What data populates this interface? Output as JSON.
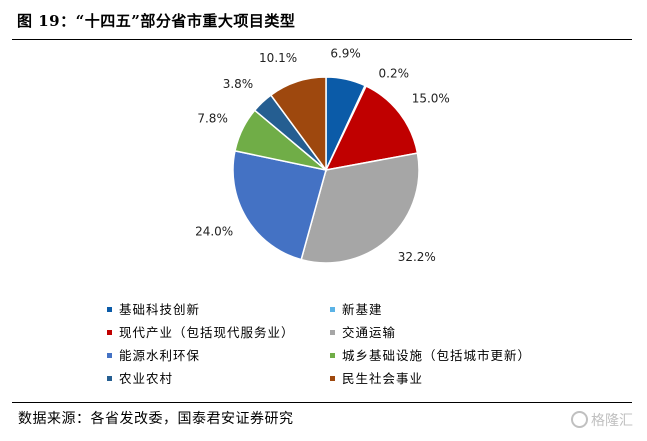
{
  "title": "图 19：“十四五”部分省市重大项目类型",
  "source": "数据来源：各省发改委，国泰君安证券研究",
  "watermark": "格隆汇",
  "chart_data": {
    "type": "pie",
    "title": "",
    "legend_position": "bottom",
    "series": [
      {
        "name": "基础科技创新",
        "value": 6.9,
        "label": "6.9%",
        "color": "#0b5ba8"
      },
      {
        "name": "新基建",
        "value": 0.2,
        "label": "0.2%",
        "color": "#5bb3e6"
      },
      {
        "name": "现代产业（包括现代服务业）",
        "value": 15.0,
        "label": "15.0%",
        "color": "#c00000"
      },
      {
        "name": "交通运输",
        "value": 32.2,
        "label": "32.2%",
        "color": "#a6a6a6"
      },
      {
        "name": "能源水利环保",
        "value": 24.0,
        "label": "24.0%",
        "color": "#4472c4"
      },
      {
        "name": "城乡基础设施（包括城市更新）",
        "value": 7.8,
        "label": "7.8%",
        "color": "#70ad47"
      },
      {
        "name": "农业农村",
        "value": 3.8,
        "label": "3.8%",
        "color": "#255e91"
      },
      {
        "name": "民生社会事业",
        "value": 10.1,
        "label": "10.1%",
        "color": "#9e480e"
      }
    ]
  }
}
